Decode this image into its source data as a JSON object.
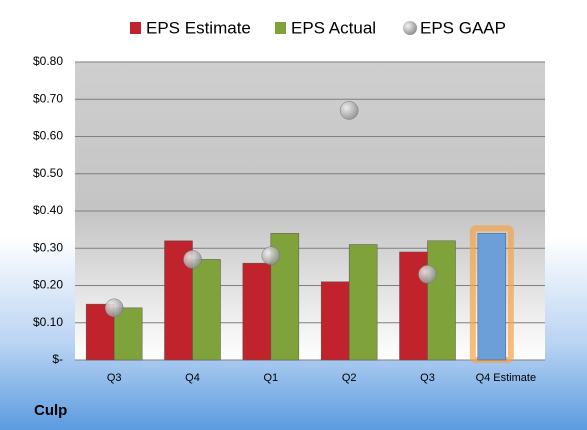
{
  "chart_data": {
    "type": "bar",
    "company": "Culp",
    "categories": [
      "Q3",
      "Q4",
      "Q1",
      "Q2",
      "Q3",
      "Q4 Estimate"
    ],
    "series": [
      {
        "name": "EPS Estimate",
        "color": "#c0232b",
        "values": [
          0.15,
          0.32,
          0.26,
          0.21,
          0.29,
          0.34
        ],
        "colors": [
          "#c0232b",
          "#c0232b",
          "#c0232b",
          "#c0232b",
          "#c0232b",
          "#6c9fd8"
        ]
      },
      {
        "name": "EPS Actual",
        "color": "#7fa33a",
        "values": [
          0.14,
          0.27,
          0.34,
          0.31,
          0.32,
          null
        ]
      },
      {
        "name": "EPS GAAP",
        "type": "scatter",
        "color": "#a6a6a6",
        "values": [
          0.14,
          0.27,
          0.28,
          0.67,
          0.23,
          null
        ]
      }
    ],
    "ylim": [
      0,
      0.8
    ],
    "yticks": [
      {
        "value": 0,
        "label": "$-"
      },
      {
        "value": 0.1,
        "label": "$0.10"
      },
      {
        "value": 0.2,
        "label": "$0.20"
      },
      {
        "value": 0.3,
        "label": "$0.30"
      },
      {
        "value": 0.4,
        "label": "$0.40"
      },
      {
        "value": 0.5,
        "label": "$0.50"
      },
      {
        "value": 0.6,
        "label": "$0.60"
      },
      {
        "value": 0.7,
        "label": "$0.70"
      },
      {
        "value": 0.8,
        "label": "$0.80"
      }
    ],
    "grid": true
  }
}
